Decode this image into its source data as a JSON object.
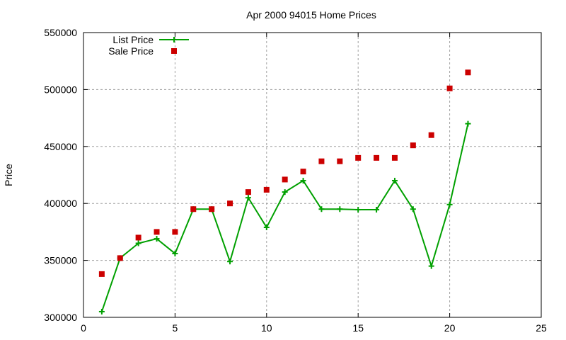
{
  "chart_data": {
    "type": "line",
    "title": "Apr 2000 94015 Home Prices",
    "xlabel": "",
    "ylabel": "Price",
    "xlim": [
      0,
      25
    ],
    "ylim": [
      300000,
      550000
    ],
    "x_ticks": [
      0,
      5,
      10,
      15,
      20,
      25
    ],
    "y_ticks": [
      300000,
      350000,
      400000,
      450000,
      500000,
      550000
    ],
    "grid": true,
    "legend_position": "top-left",
    "x": [
      1,
      2,
      3,
      4,
      5,
      6,
      7,
      8,
      9,
      10,
      11,
      12,
      13,
      14,
      15,
      16,
      17,
      18,
      19,
      20,
      21
    ],
    "series": [
      {
        "name": "List Price",
        "style": "linespoints",
        "marker": "plus",
        "color": "#00a000",
        "values": [
          305000,
          352000,
          365000,
          369000,
          356000,
          395000,
          395000,
          349000,
          405000,
          379000,
          410000,
          420000,
          395000,
          395000,
          394500,
          394500,
          420000,
          395000,
          345000,
          399000,
          470000
        ]
      },
      {
        "name": "Sale Price",
        "style": "points",
        "marker": "square",
        "color": "#cc0000",
        "values": [
          338000,
          352000,
          370000,
          375000,
          375000,
          395000,
          395000,
          400000,
          410000,
          412000,
          421000,
          428000,
          437000,
          437000,
          440000,
          440000,
          440000,
          451000,
          460000,
          501000,
          515000
        ]
      }
    ]
  }
}
